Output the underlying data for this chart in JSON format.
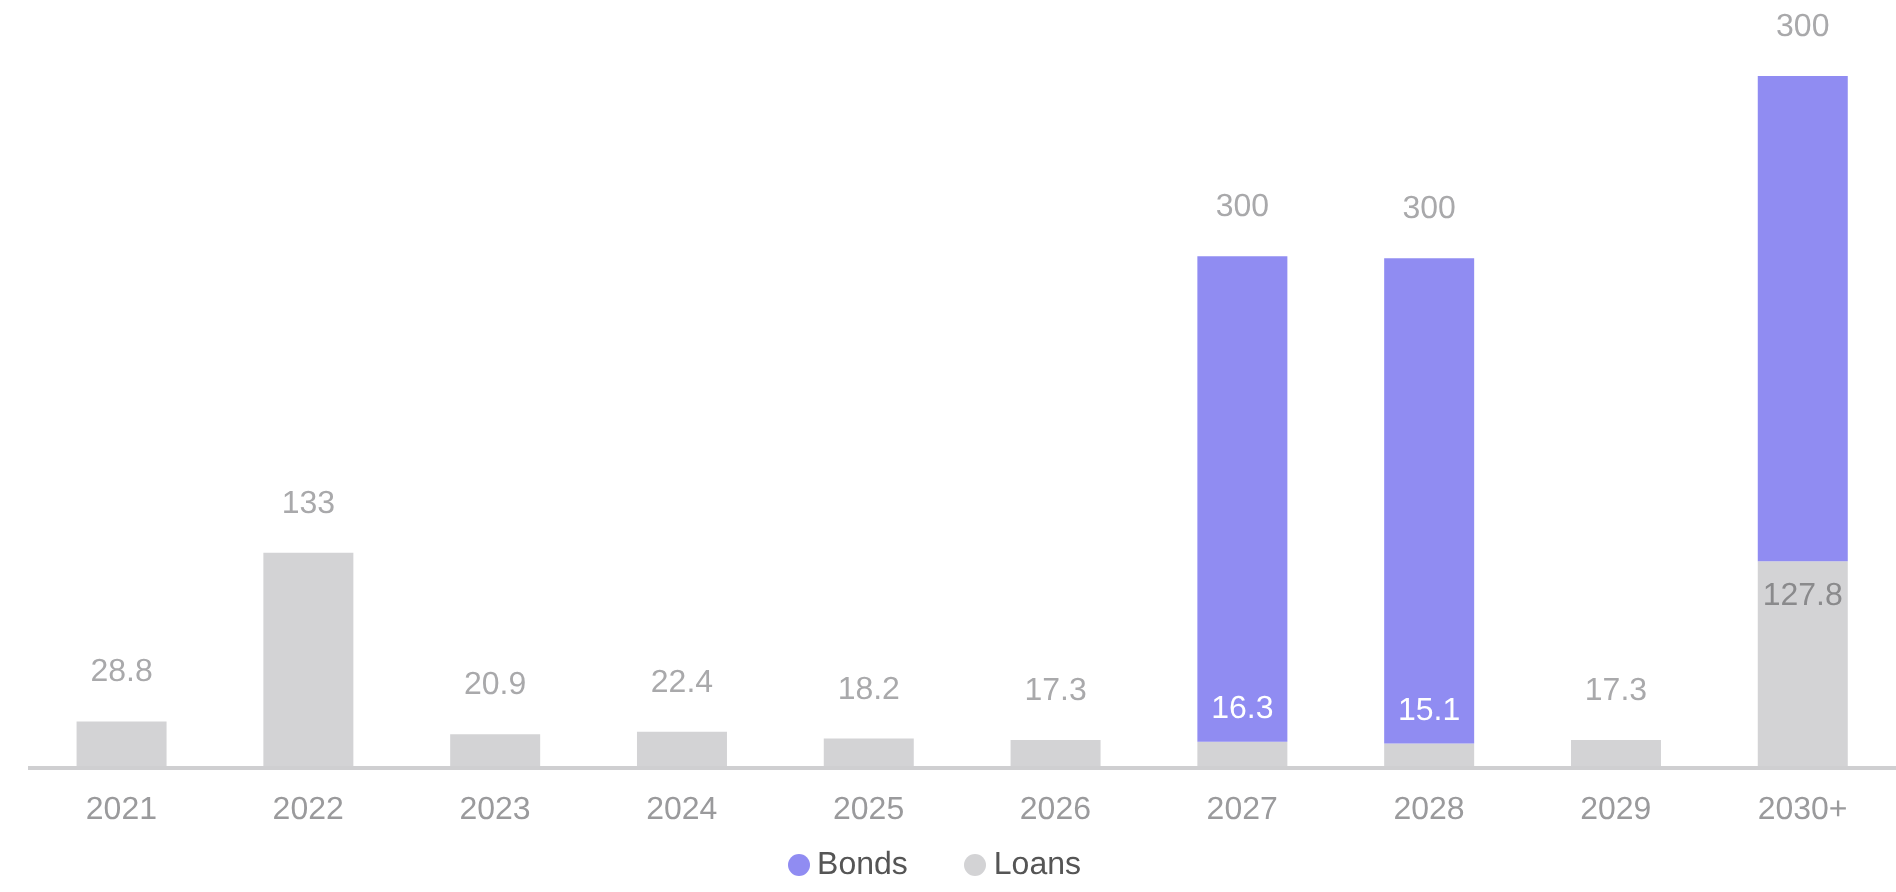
{
  "chart_data": {
    "type": "bar",
    "stacked": true,
    "categories": [
      "2021",
      "2022",
      "2023",
      "2024",
      "2025",
      "2026",
      "2027",
      "2028",
      "2029",
      "2030+"
    ],
    "series": [
      {
        "name": "Loans",
        "color": "#d3d3d5",
        "values": [
          28.8,
          133,
          20.9,
          22.4,
          18.2,
          17.3,
          16.3,
          15.1,
          17.3,
          127.8
        ]
      },
      {
        "name": "Bonds",
        "color": "#908cf2",
        "values": [
          null,
          null,
          null,
          null,
          null,
          null,
          300,
          300,
          null,
          300
        ]
      }
    ],
    "data_labels": true,
    "legend": "bottom",
    "grid": false
  }
}
